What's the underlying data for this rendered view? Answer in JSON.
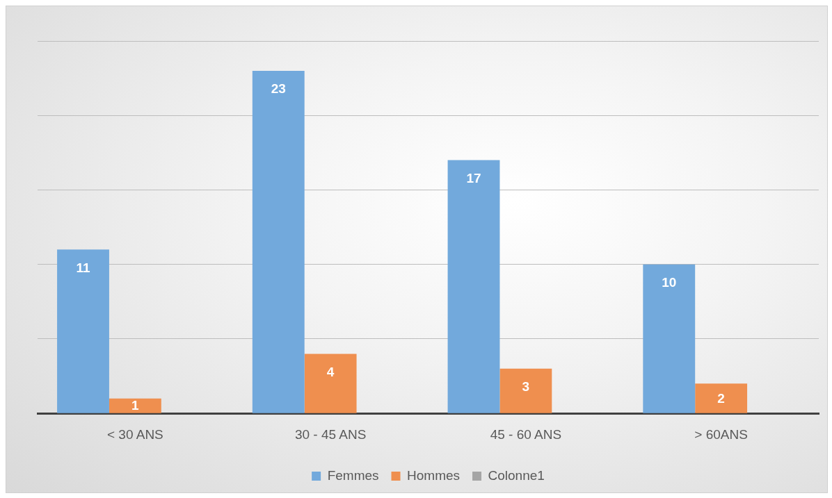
{
  "chart_data": {
    "type": "bar",
    "categories": [
      "< 30 ANS",
      "30 - 45 ANS",
      "45 - 60 ANS",
      "> 60ANS"
    ],
    "series": [
      {
        "name": "Femmes",
        "color": "#72a9dc",
        "values": [
          11,
          23,
          17,
          10
        ]
      },
      {
        "name": "Hommes",
        "color": "#ef8f4f",
        "values": [
          1,
          4,
          3,
          2
        ]
      },
      {
        "name": "Colonne1",
        "color": "#a5a5a5",
        "values": [
          null,
          null,
          null,
          null
        ]
      }
    ],
    "tick_labels": "x",
    "grid": "y",
    "legend": "bottom",
    "data_labels": true
  }
}
